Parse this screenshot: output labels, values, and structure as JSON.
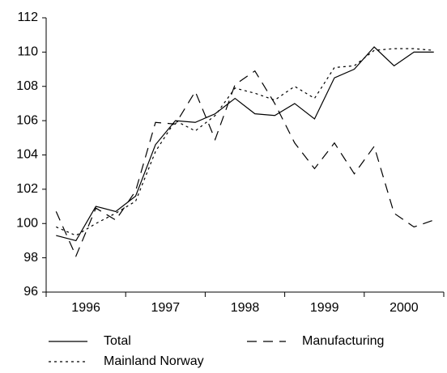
{
  "chart_data": {
    "type": "line",
    "year_labels": [
      "1996",
      "1997",
      "1998",
      "1999",
      "2000"
    ],
    "ylim": [
      96,
      112
    ],
    "yticks": [
      96,
      98,
      100,
      102,
      104,
      106,
      108,
      110,
      112
    ],
    "series": [
      {
        "name": "Total",
        "color": "#000000",
        "dash": "none",
        "values": [
          99.3,
          99.0,
          101.0,
          100.7,
          101.6,
          104.6,
          106.0,
          105.9,
          106.4,
          107.3,
          106.4,
          106.3,
          107.0,
          106.1,
          108.5,
          109.0,
          110.3,
          109.2,
          110.0,
          110.0
        ]
      },
      {
        "name": "Manufacturing",
        "color": "#000000",
        "dash": "12,8",
        "values": [
          100.7,
          98.1,
          100.9,
          100.2,
          101.9,
          105.9,
          105.8,
          107.7,
          104.9,
          108.1,
          108.9,
          107.0,
          104.7,
          103.2,
          104.7,
          102.9,
          104.5,
          100.6,
          99.8,
          100.2
        ]
      },
      {
        "name": "Mainland Norway",
        "color": "#000000",
        "dash": "3,4",
        "values": [
          99.8,
          99.3,
          100.0,
          100.6,
          101.3,
          104.2,
          106.0,
          105.4,
          106.3,
          107.9,
          107.6,
          107.2,
          108.0,
          107.3,
          109.1,
          109.2,
          110.1,
          110.2,
          110.2,
          110.1
        ]
      }
    ]
  }
}
